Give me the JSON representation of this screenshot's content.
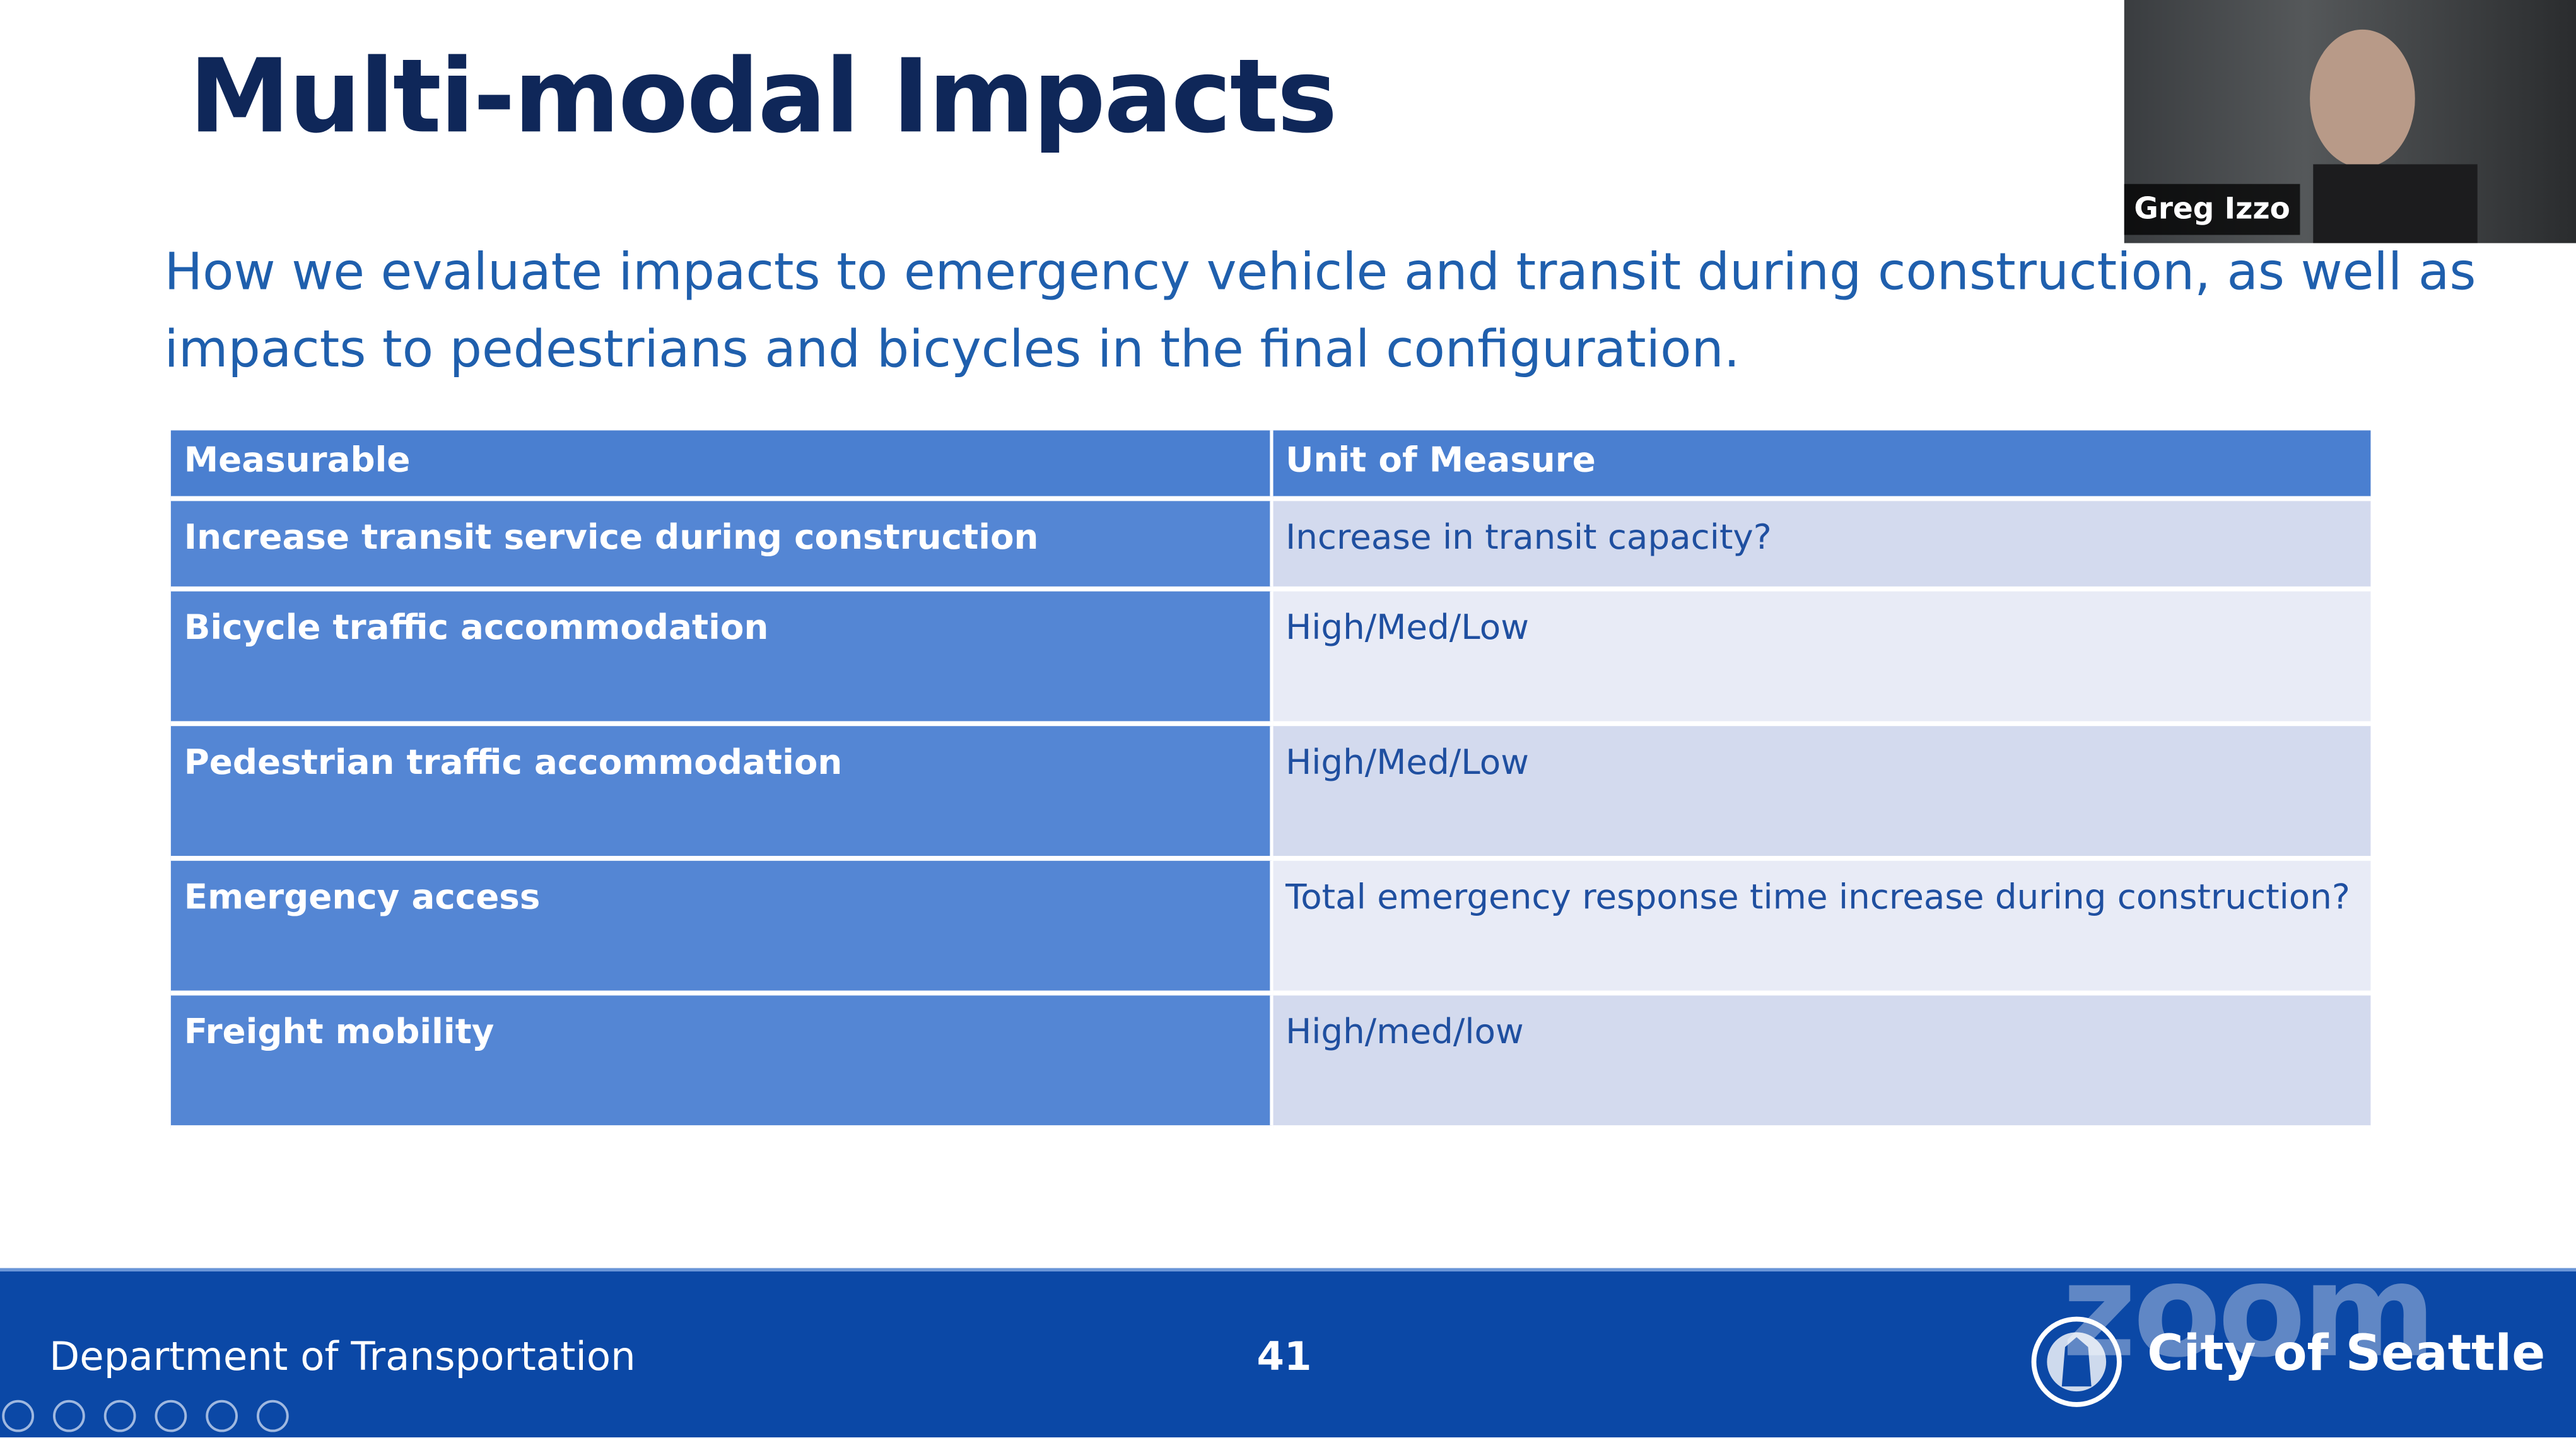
{
  "slide": {
    "title": "Multi-modal Impacts",
    "subtitle": "How we evaluate impacts to emergency vehicle and transit during construction, as well as impacts to pedestrians and bicycles in the final configuration.",
    "table": {
      "header": [
        "Measurable",
        "Unit of Measure"
      ],
      "rows": [
        [
          "Increase transit service during construction",
          "Increase in transit capacity?"
        ],
        [
          "Bicycle traffic accommodation",
          "High/Med/Low"
        ],
        [
          "Pedestrian traffic accommodation",
          "High/Med/Low"
        ],
        [
          "Emergency access",
          "Total emergency response time increase during construction?"
        ],
        [
          "Freight mobility",
          "High/med/low"
        ]
      ]
    },
    "footer": {
      "department": "Department of Transportation",
      "page_number": 41,
      "logo_text": "City of Seattle"
    }
  },
  "video": {
    "participant_name": "Greg Izzo"
  },
  "watermark": "zoom"
}
